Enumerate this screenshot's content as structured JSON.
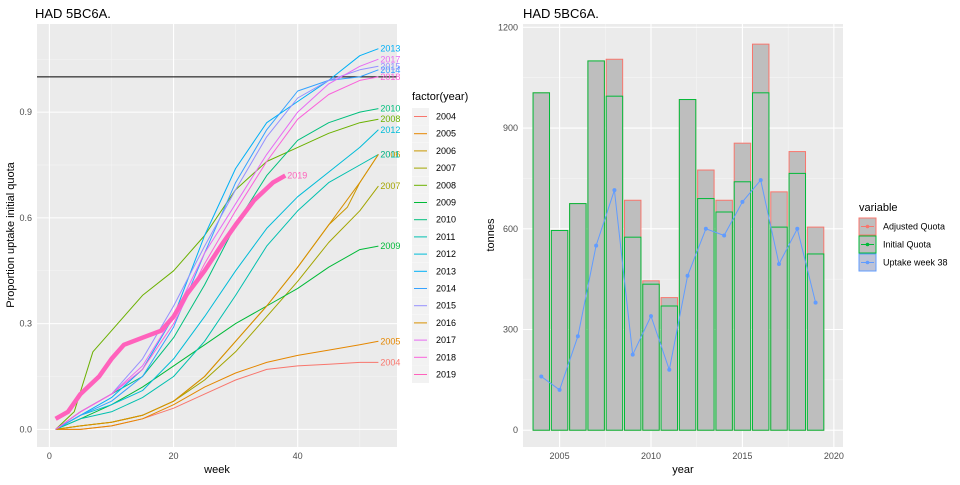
{
  "charts": [
    {
      "title": "HAD 5BC6A.",
      "type": "line",
      "xlabel": "week",
      "ylabel": "Proportion uptake initial quota",
      "xlim": [
        -2,
        56
      ],
      "ylim": [
        -0.05,
        1.15
      ],
      "xticks": [
        0,
        20,
        40
      ],
      "yticks": [
        0.0,
        0.3,
        0.6,
        0.9
      ],
      "ytick_labels": [
        "0.0",
        "0.3",
        "0.6",
        "0.9"
      ],
      "hline": 1.0,
      "legend_title": "factor(year)",
      "legend_position": "right",
      "grid": true,
      "series": [
        {
          "name": "2004",
          "color": "#F8766D",
          "end_label": "2004",
          "points": [
            [
              1,
              0
            ],
            [
              5,
              0
            ],
            [
              10,
              0.01
            ],
            [
              15,
              0.03
            ],
            [
              20,
              0.06
            ],
            [
              25,
              0.1
            ],
            [
              30,
              0.14
            ],
            [
              35,
              0.17
            ],
            [
              40,
              0.18
            ],
            [
              45,
              0.185
            ],
            [
              50,
              0.19
            ],
            [
              53,
              0.19
            ]
          ]
        },
        {
          "name": "2005",
          "color": "#E58700",
          "end_label": "2005",
          "points": [
            [
              1,
              0
            ],
            [
              5,
              0
            ],
            [
              10,
              0.01
            ],
            [
              15,
              0.03
            ],
            [
              20,
              0.07
            ],
            [
              25,
              0.12
            ],
            [
              30,
              0.16
            ],
            [
              35,
              0.19
            ],
            [
              40,
              0.21
            ],
            [
              45,
              0.225
            ],
            [
              50,
              0.24
            ],
            [
              53,
              0.25
            ]
          ]
        },
        {
          "name": "2006",
          "color": "#C99800",
          "end_label": "2006",
          "points": [
            [
              1,
              0
            ],
            [
              5,
              0.01
            ],
            [
              10,
              0.02
            ],
            [
              15,
              0.04
            ],
            [
              20,
              0.08
            ],
            [
              25,
              0.15
            ],
            [
              30,
              0.25
            ],
            [
              35,
              0.35
            ],
            [
              40,
              0.46
            ],
            [
              45,
              0.58
            ],
            [
              48,
              0.63
            ],
            [
              50,
              0.7
            ],
            [
              53,
              0.78
            ]
          ]
        },
        {
          "name": "2007",
          "color": "#A3A500",
          "end_label": "2007",
          "points": [
            [
              1,
              0
            ],
            [
              5,
              0.01
            ],
            [
              10,
              0.02
            ],
            [
              15,
              0.04
            ],
            [
              20,
              0.08
            ],
            [
              25,
              0.14
            ],
            [
              30,
              0.22
            ],
            [
              35,
              0.32
            ],
            [
              40,
              0.42
            ],
            [
              45,
              0.53
            ],
            [
              50,
              0.62
            ],
            [
              53,
              0.69
            ]
          ]
        },
        {
          "name": "2008",
          "color": "#6BB100",
          "end_label": "2008",
          "points": [
            [
              1,
              0
            ],
            [
              4,
              0.05
            ],
            [
              7,
              0.22
            ],
            [
              10,
              0.28
            ],
            [
              15,
              0.38
            ],
            [
              20,
              0.45
            ],
            [
              25,
              0.55
            ],
            [
              30,
              0.68
            ],
            [
              35,
              0.76
            ],
            [
              40,
              0.8
            ],
            [
              45,
              0.84
            ],
            [
              50,
              0.87
            ],
            [
              53,
              0.88
            ]
          ]
        },
        {
          "name": "2009",
          "color": "#00BA38",
          "end_label": "2009",
          "points": [
            [
              1,
              0
            ],
            [
              5,
              0.03
            ],
            [
              10,
              0.07
            ],
            [
              15,
              0.12
            ],
            [
              20,
              0.18
            ],
            [
              25,
              0.24
            ],
            [
              30,
              0.3
            ],
            [
              35,
              0.35
            ],
            [
              40,
              0.4
            ],
            [
              45,
              0.46
            ],
            [
              50,
              0.51
            ],
            [
              53,
              0.52
            ]
          ]
        },
        {
          "name": "2010",
          "color": "#00BF7D",
          "end_label": "2010",
          "points": [
            [
              1,
              0
            ],
            [
              5,
              0.05
            ],
            [
              10,
              0.1
            ],
            [
              15,
              0.15
            ],
            [
              20,
              0.26
            ],
            [
              25,
              0.41
            ],
            [
              30,
              0.58
            ],
            [
              35,
              0.72
            ],
            [
              40,
              0.82
            ],
            [
              45,
              0.87
            ],
            [
              50,
              0.9
            ],
            [
              53,
              0.91
            ]
          ]
        },
        {
          "name": "2011",
          "color": "#00C0AF",
          "end_label": "2011",
          "points": [
            [
              1,
              0
            ],
            [
              5,
              0.03
            ],
            [
              10,
              0.05
            ],
            [
              15,
              0.09
            ],
            [
              20,
              0.15
            ],
            [
              25,
              0.25
            ],
            [
              30,
              0.38
            ],
            [
              35,
              0.52
            ],
            [
              40,
              0.62
            ],
            [
              45,
              0.7
            ],
            [
              50,
              0.75
            ],
            [
              53,
              0.78
            ]
          ]
        },
        {
          "name": "2012",
          "color": "#00BCD8",
          "end_label": "2012",
          "points": [
            [
              1,
              0
            ],
            [
              5,
              0.04
            ],
            [
              10,
              0.07
            ],
            [
              15,
              0.11
            ],
            [
              20,
              0.2
            ],
            [
              25,
              0.32
            ],
            [
              30,
              0.45
            ],
            [
              35,
              0.57
            ],
            [
              40,
              0.66
            ],
            [
              45,
              0.73
            ],
            [
              50,
              0.8
            ],
            [
              53,
              0.85
            ]
          ]
        },
        {
          "name": "2013",
          "color": "#00B0F6",
          "end_label": "2013",
          "points": [
            [
              1,
              0
            ],
            [
              5,
              0.04
            ],
            [
              10,
              0.09
            ],
            [
              15,
              0.17
            ],
            [
              20,
              0.32
            ],
            [
              25,
              0.55
            ],
            [
              30,
              0.74
            ],
            [
              35,
              0.87
            ],
            [
              40,
              0.93
            ],
            [
              45,
              0.99
            ],
            [
              50,
              1.06
            ],
            [
              53,
              1.08
            ]
          ]
        },
        {
          "name": "2014",
          "color": "#35A2FF",
          "end_label": "2014",
          "points": [
            [
              1,
              0
            ],
            [
              5,
              0.04
            ],
            [
              10,
              0.08
            ],
            [
              15,
              0.15
            ],
            [
              20,
              0.29
            ],
            [
              25,
              0.5
            ],
            [
              30,
              0.7
            ],
            [
              35,
              0.85
            ],
            [
              40,
              0.96
            ],
            [
              45,
              0.99
            ],
            [
              50,
              1.0
            ],
            [
              53,
              1.02
            ]
          ]
        },
        {
          "name": "2015",
          "color": "#9590FF",
          "end_label": "2015",
          "points": [
            [
              1,
              0
            ],
            [
              5,
              0.05
            ],
            [
              10,
              0.1
            ],
            [
              15,
              0.2
            ],
            [
              20,
              0.35
            ],
            [
              25,
              0.52
            ],
            [
              30,
              0.68
            ],
            [
              35,
              0.83
            ],
            [
              40,
              0.94
            ],
            [
              45,
              0.99
            ],
            [
              50,
              1.02
            ],
            [
              53,
              1.03
            ]
          ]
        },
        {
          "name": "2016",
          "color": "#D89000",
          "end_label": "",
          "points": [
            [
              1,
              0
            ],
            [
              5,
              0.01
            ],
            [
              10,
              0.02
            ],
            [
              15,
              0.04
            ],
            [
              20,
              0.08
            ],
            [
              25,
              0.15
            ],
            [
              30,
              0.25
            ],
            [
              35,
              0.35
            ],
            [
              40,
              0.46
            ],
            [
              45,
              0.58
            ],
            [
              50,
              0.7
            ],
            [
              53,
              0.78
            ]
          ]
        },
        {
          "name": "2017",
          "color": "#E76BF3",
          "end_label": "2017",
          "points": [
            [
              1,
              0
            ],
            [
              5,
              0.05
            ],
            [
              10,
              0.1
            ],
            [
              15,
              0.18
            ],
            [
              20,
              0.32
            ],
            [
              25,
              0.5
            ],
            [
              30,
              0.64
            ],
            [
              35,
              0.78
            ],
            [
              40,
              0.9
            ],
            [
              45,
              0.98
            ],
            [
              50,
              1.03
            ],
            [
              53,
              1.05
            ]
          ]
        },
        {
          "name": "2018",
          "color": "#FA62DB",
          "end_label": "2018",
          "points": [
            [
              1,
              0
            ],
            [
              5,
              0.05
            ],
            [
              10,
              0.1
            ],
            [
              15,
              0.17
            ],
            [
              20,
              0.3
            ],
            [
              25,
              0.47
            ],
            [
              30,
              0.62
            ],
            [
              35,
              0.76
            ],
            [
              40,
              0.88
            ],
            [
              45,
              0.95
            ],
            [
              50,
              0.99
            ],
            [
              53,
              1.0
            ]
          ]
        },
        {
          "name": "2019",
          "color": "#FF62BC",
          "end_label": "2019",
          "thick": true,
          "points": [
            [
              1,
              0.03
            ],
            [
              3,
              0.05
            ],
            [
              5,
              0.1
            ],
            [
              8,
              0.15
            ],
            [
              10,
              0.2
            ],
            [
              12,
              0.24
            ],
            [
              15,
              0.26
            ],
            [
              18,
              0.28
            ],
            [
              20,
              0.32
            ],
            [
              22,
              0.38
            ],
            [
              25,
              0.45
            ],
            [
              28,
              0.53
            ],
            [
              30,
              0.58
            ],
            [
              33,
              0.65
            ],
            [
              36,
              0.7
            ],
            [
              38,
              0.72
            ]
          ]
        }
      ]
    },
    {
      "title": "HAD 5BC6A.",
      "type": "bar",
      "xlabel": "year",
      "ylabel": "tonnes",
      "xlim": [
        2003,
        2020.5
      ],
      "ylim": [
        -50,
        1210
      ],
      "xticks": [
        2005,
        2010,
        2015,
        2020
      ],
      "yticks": [
        0,
        300,
        600,
        900,
        1200
      ],
      "legend_title": "variable",
      "legend_position": "right",
      "grid": true,
      "legend": [
        "Adjusted Quota",
        "Initial Quota",
        "Uptake week 38"
      ],
      "colors": {
        "adjusted": "#F8766D",
        "initial": "#00BA38",
        "uptake": "#619CFF",
        "fill": "#BEBEBE"
      },
      "years": [
        2004,
        2005,
        2006,
        2007,
        2008,
        2009,
        2010,
        2011,
        2012,
        2013,
        2014,
        2015,
        2016,
        2017,
        2018,
        2019
      ],
      "adjusted_quota": [
        1005,
        595,
        675,
        1100,
        1105,
        685,
        445,
        395,
        985,
        775,
        685,
        855,
        1150,
        710,
        830,
        605
      ],
      "initial_quota": [
        1005,
        595,
        675,
        1100,
        995,
        575,
        435,
        370,
        985,
        690,
        650,
        740,
        1005,
        605,
        765,
        525
      ],
      "uptake_week38": [
        160,
        120,
        280,
        550,
        715,
        225,
        340,
        180,
        460,
        600,
        580,
        680,
        745,
        495,
        600,
        380
      ]
    }
  ]
}
